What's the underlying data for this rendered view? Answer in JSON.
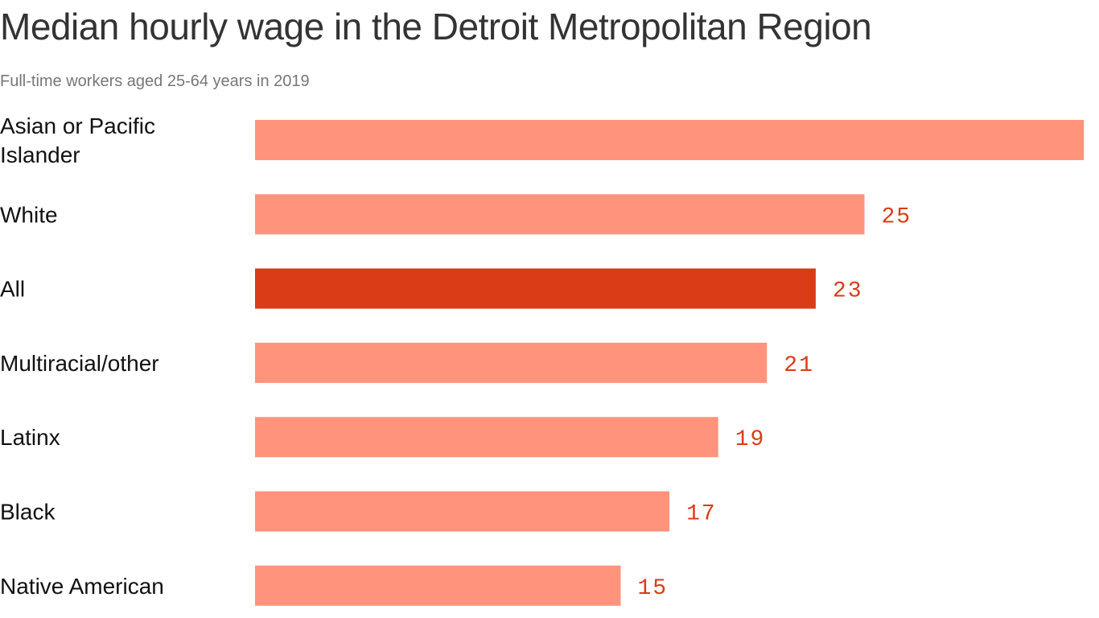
{
  "chart_data": {
    "type": "bar",
    "orientation": "horizontal",
    "title": "Median hourly wage in the Detroit Metropolitan Region",
    "subtitle": "Full-time workers aged 25-64 years in 2019",
    "categories": [
      "Asian or Pacific Islander",
      "White",
      "All",
      "Multiracial/other",
      "Latinx",
      "Black",
      "Native American"
    ],
    "values": [
      34,
      25,
      23,
      21,
      19,
      17,
      15
    ],
    "value_labels_shown": [
      false,
      true,
      true,
      true,
      true,
      true,
      true
    ],
    "highlight": "All",
    "colors": {
      "bar": "#ff937c",
      "highlight": "#d93c17",
      "label": "#d93c17"
    },
    "grid": false,
    "xlim": [
      0,
      34
    ]
  }
}
